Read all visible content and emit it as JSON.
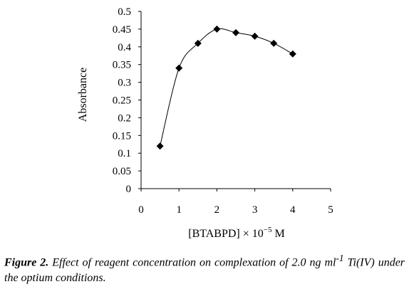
{
  "chart_data": {
    "type": "line",
    "x": [
      0.5,
      1,
      1.5,
      2,
      2.5,
      3,
      3.5,
      4
    ],
    "y": [
      0.12,
      0.34,
      0.41,
      0.45,
      0.44,
      0.43,
      0.41,
      0.38
    ],
    "xlabel": {
      "prefix": "[BTABPD] × 10",
      "exponent": "−5",
      "suffix": " M"
    },
    "ylabel": "Absorbance",
    "xlim": [
      0,
      5
    ],
    "ylim": [
      0,
      0.5
    ],
    "x_ticks": [
      "0",
      "1",
      "2",
      "3",
      "4",
      "5"
    ],
    "y_ticks": [
      "0",
      "0.05",
      "0.1",
      "0.15",
      "0.2",
      "0.25",
      "0.3",
      "0.35",
      "0.4",
      "0.45",
      "0.5"
    ],
    "marker": "diamond",
    "smooth": true,
    "grid": false,
    "line_color": "#000000"
  },
  "caption": {
    "label": "Figure 2.",
    "text_pre": " Effect of reagent concentration on complexation of 2.0 ng ml",
    "superscript": "-1",
    "text_post": " Ti(IV) under the optium conditions."
  }
}
